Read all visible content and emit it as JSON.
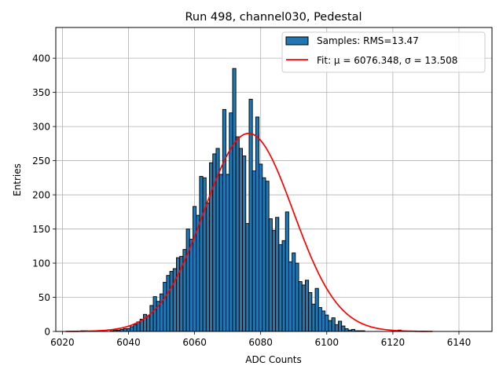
{
  "chart_data": {
    "type": "bar",
    "title": "Run 498, channel030, Pedestal",
    "xlabel": "ADC Counts",
    "ylabel": "Entries",
    "xlim": [
      6018,
      6150
    ],
    "ylim": [
      0,
      445
    ],
    "xticks": [
      6020,
      6040,
      6060,
      6080,
      6100,
      6120,
      6140
    ],
    "yticks": [
      0,
      50,
      100,
      150,
      200,
      250,
      300,
      350,
      400
    ],
    "grid": true,
    "legend": "top-right",
    "bin_width": 1,
    "series": [
      {
        "name": "Samples: RMS=13.47",
        "kind": "histogram",
        "color": "#1f77b4",
        "edgecolor": "#000000",
        "x": [
          6021,
          6022,
          6023,
          6024,
          6025,
          6026,
          6027,
          6028,
          6029,
          6030,
          6031,
          6032,
          6033,
          6034,
          6035,
          6036,
          6037,
          6038,
          6039,
          6040,
          6041,
          6042,
          6043,
          6044,
          6045,
          6046,
          6047,
          6048,
          6049,
          6050,
          6051,
          6052,
          6053,
          6054,
          6055,
          6056,
          6057,
          6058,
          6059,
          6060,
          6061,
          6062,
          6063,
          6064,
          6065,
          6066,
          6067,
          6068,
          6069,
          6070,
          6071,
          6072,
          6073,
          6074,
          6075,
          6076,
          6077,
          6078,
          6079,
          6080,
          6081,
          6082,
          6083,
          6084,
          6085,
          6086,
          6087,
          6088,
          6089,
          6090,
          6091,
          6092,
          6093,
          6094,
          6095,
          6096,
          6097,
          6098,
          6099,
          6100,
          6101,
          6102,
          6103,
          6104,
          6105,
          6106,
          6107,
          6108,
          6109,
          6110,
          6111,
          6112,
          6113,
          6114,
          6115,
          6116,
          6117,
          6118,
          6119,
          6120,
          6121,
          6122,
          6123,
          6124,
          6125,
          6126,
          6127,
          6128,
          6129,
          6130,
          6131,
          6132
        ],
        "values": [
          0,
          0,
          0,
          0,
          0,
          1,
          1,
          0,
          0,
          0,
          0,
          0,
          0,
          0,
          1,
          2,
          2,
          3,
          4,
          4,
          7,
          10,
          14,
          18,
          25,
          23,
          38,
          51,
          44,
          55,
          72,
          82,
          88,
          92,
          108,
          110,
          120,
          150,
          135,
          183,
          170,
          227,
          225,
          188,
          247,
          260,
          268,
          230,
          325,
          230,
          320,
          385,
          285,
          268,
          257,
          158,
          340,
          235,
          314,
          245,
          225,
          220,
          165,
          148,
          167,
          127,
          133,
          175,
          102,
          115,
          100,
          73,
          68,
          75,
          57,
          40,
          63,
          35,
          30,
          24,
          16,
          20,
          10,
          15,
          8,
          4,
          2,
          3,
          1,
          1,
          1,
          0,
          0,
          0,
          0,
          0,
          0,
          0,
          0,
          0,
          0,
          2,
          0,
          0,
          0,
          0,
          0,
          0,
          0,
          0,
          0,
          0
        ]
      },
      {
        "name": "Fit: μ = 6076.348, σ = 13.508",
        "kind": "gaussian_fit",
        "color": "#ff0000",
        "mu": 6076.348,
        "sigma": 13.508,
        "amplitude": 290,
        "x_range": [
          6021,
          6132
        ]
      }
    ]
  }
}
